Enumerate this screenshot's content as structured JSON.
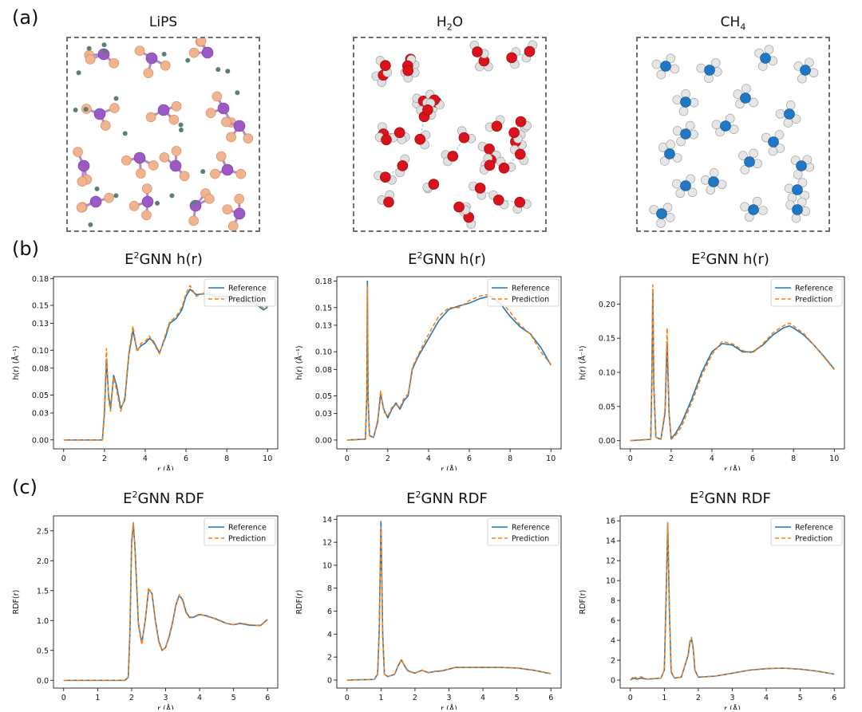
{
  "panel_letters": [
    "(a)",
    "(b)",
    "(c)"
  ],
  "molecules": [
    {
      "title": "LiPS",
      "atom_colors": {
        "main": "#9b59c6",
        "side": "#f2b48e",
        "small": "#5f7d78"
      }
    },
    {
      "title_main": "H",
      "title_sub": "2",
      "title_end": "O",
      "atom_colors": {
        "main": "#d9121b",
        "side": "#e0e0e0",
        "bond": "#7fd0ef"
      }
    },
    {
      "title_main": "CH",
      "title_sub": "4",
      "title_end": "",
      "atom_colors": {
        "main": "#1f78c4",
        "side": "#e6e6e6"
      }
    }
  ],
  "colors": {
    "reference": "#1f77b4",
    "prediction": "#ff7f0e",
    "axis": "#000000"
  },
  "chart_data": [
    {
      "type": "line",
      "panel": "b",
      "title_prefix": "E",
      "title_sup": "2",
      "title_rest": "GNN h(r)",
      "xlabel": "r (Å)",
      "ylabel": "h(r) (Å⁻¹)",
      "xlim": [
        -0.5,
        10.5
      ],
      "ylim": [
        -0.01,
        0.182
      ],
      "xticks": [
        0,
        2,
        4,
        6,
        8,
        10
      ],
      "yticks": [
        0.0,
        0.03,
        0.05,
        0.08,
        0.1,
        0.13,
        0.15,
        0.18
      ],
      "ytick_labels": [
        "0.00",
        "0.03",
        "0.05",
        "0.08",
        "0.10",
        "0.13",
        "0.15",
        "0.18"
      ],
      "legend": "top-right",
      "series": [
        {
          "name": "Reference",
          "x": [
            0,
            1.9,
            2.0,
            2.1,
            2.2,
            2.3,
            2.45,
            2.6,
            2.8,
            3.0,
            3.2,
            3.4,
            3.6,
            3.8,
            4.0,
            4.2,
            4.4,
            4.7,
            5.0,
            5.2,
            5.5,
            5.8,
            6.0,
            6.2,
            6.5,
            7.0,
            7.5,
            8.0,
            8.5,
            9.0,
            9.5,
            9.8,
            10.0
          ],
          "y": [
            0,
            0,
            0.03,
            0.09,
            0.05,
            0.035,
            0.072,
            0.06,
            0.035,
            0.045,
            0.095,
            0.122,
            0.1,
            0.105,
            0.108,
            0.113,
            0.11,
            0.097,
            0.115,
            0.13,
            0.135,
            0.145,
            0.16,
            0.168,
            0.162,
            0.163,
            0.16,
            0.16,
            0.155,
            0.155,
            0.15,
            0.145,
            0.148
          ]
        },
        {
          "name": "Prediction",
          "x": [
            0,
            1.9,
            2.0,
            2.1,
            2.2,
            2.3,
            2.45,
            2.6,
            2.8,
            3.0,
            3.2,
            3.4,
            3.6,
            3.8,
            4.0,
            4.2,
            4.4,
            4.7,
            5.0,
            5.2,
            5.5,
            5.8,
            6.0,
            6.2,
            6.5,
            7.0,
            7.5,
            8.0,
            8.5,
            9.0,
            9.5,
            9.8,
            10.0
          ],
          "y": [
            0,
            0,
            0.035,
            0.102,
            0.045,
            0.032,
            0.07,
            0.055,
            0.032,
            0.048,
            0.098,
            0.127,
            0.098,
            0.108,
            0.11,
            0.116,
            0.108,
            0.096,
            0.118,
            0.132,
            0.137,
            0.148,
            0.163,
            0.172,
            0.16,
            0.165,
            0.158,
            0.158,
            0.152,
            0.153,
            0.152,
            0.147,
            0.149
          ]
        }
      ]
    },
    {
      "type": "line",
      "panel": "b",
      "title_prefix": "E",
      "title_sup": "2",
      "title_rest": "GNN h(r)",
      "xlabel": "r (Å)",
      "ylabel": "h(r) (Å⁻¹)",
      "xlim": [
        -0.5,
        10.5
      ],
      "ylim": [
        -0.01,
        0.185
      ],
      "xticks": [
        0,
        2,
        4,
        6,
        8,
        10
      ],
      "yticks": [
        0.0,
        0.03,
        0.05,
        0.08,
        0.1,
        0.13,
        0.15,
        0.18
      ],
      "ytick_labels": [
        "0.00",
        "0.03",
        "0.05",
        "0.08",
        "0.10",
        "0.13",
        "0.15",
        "0.18"
      ],
      "legend": "top-right",
      "series": [
        {
          "name": "Reference",
          "x": [
            0,
            0.9,
            0.97,
            1.0,
            1.03,
            1.1,
            1.3,
            1.5,
            1.65,
            1.8,
            2.0,
            2.2,
            2.4,
            2.6,
            2.8,
            3.0,
            3.2,
            3.5,
            4.0,
            4.5,
            5.0,
            5.5,
            6.0,
            6.5,
            7.0,
            7.5,
            8.0,
            8.5,
            9.0,
            9.5,
            10.0
          ],
          "y": [
            0,
            0.001,
            0.05,
            0.18,
            0.05,
            0.005,
            0.003,
            0.02,
            0.052,
            0.035,
            0.025,
            0.035,
            0.042,
            0.035,
            0.045,
            0.05,
            0.08,
            0.095,
            0.115,
            0.135,
            0.148,
            0.152,
            0.155,
            0.16,
            0.163,
            0.155,
            0.14,
            0.128,
            0.12,
            0.105,
            0.085
          ]
        },
        {
          "name": "Prediction",
          "x": [
            0,
            0.9,
            0.97,
            1.0,
            1.03,
            1.1,
            1.3,
            1.5,
            1.65,
            1.8,
            2.0,
            2.2,
            2.4,
            2.6,
            2.8,
            3.0,
            3.2,
            3.5,
            4.0,
            4.5,
            5.0,
            5.5,
            6.0,
            6.5,
            7.0,
            7.5,
            8.0,
            8.5,
            9.0,
            9.5,
            10.0
          ],
          "y": [
            0,
            0.001,
            0.05,
            0.175,
            0.05,
            0.005,
            0.003,
            0.022,
            0.056,
            0.032,
            0.027,
            0.037,
            0.04,
            0.037,
            0.048,
            0.052,
            0.082,
            0.097,
            0.12,
            0.14,
            0.15,
            0.15,
            0.158,
            0.163,
            0.165,
            0.158,
            0.145,
            0.13,
            0.12,
            0.1,
            0.086
          ]
        }
      ]
    },
    {
      "type": "line",
      "panel": "b",
      "title_prefix": "E",
      "title_sup": "2",
      "title_rest": "GNN h(r)",
      "xlabel": "r (Å)",
      "ylabel": "h(r) (Å⁻¹)",
      "xlim": [
        -0.5,
        10.5
      ],
      "ylim": [
        -0.012,
        0.24
      ],
      "xticks": [
        0,
        2,
        4,
        6,
        8,
        10
      ],
      "yticks": [
        0.0,
        0.05,
        0.1,
        0.15,
        0.2
      ],
      "ytick_labels": [
        "0.00",
        "0.05",
        "0.10",
        "0.15",
        "0.20"
      ],
      "legend": "top-right",
      "series": [
        {
          "name": "Reference",
          "x": [
            0,
            1.0,
            1.05,
            1.1,
            1.15,
            1.25,
            1.5,
            1.7,
            1.8,
            1.9,
            2.0,
            2.2,
            2.5,
            3.0,
            3.5,
            4.0,
            4.5,
            5.0,
            5.5,
            6.0,
            6.5,
            7.0,
            7.5,
            7.8,
            8.0,
            8.5,
            9.0,
            9.5,
            10.0
          ],
          "y": [
            0,
            0.002,
            0.08,
            0.22,
            0.08,
            0.005,
            0.002,
            0.04,
            0.145,
            0.04,
            0.003,
            0.01,
            0.025,
            0.06,
            0.1,
            0.13,
            0.142,
            0.14,
            0.13,
            0.13,
            0.14,
            0.155,
            0.165,
            0.168,
            0.165,
            0.155,
            0.14,
            0.123,
            0.105
          ]
        },
        {
          "name": "Prediction",
          "x": [
            0,
            1.0,
            1.05,
            1.1,
            1.15,
            1.25,
            1.5,
            1.7,
            1.8,
            1.9,
            2.0,
            2.2,
            2.5,
            3.0,
            3.5,
            4.0,
            4.5,
            5.0,
            5.5,
            6.0,
            6.5,
            7.0,
            7.5,
            7.8,
            8.0,
            8.5,
            9.0,
            9.5,
            10.0
          ],
          "y": [
            0,
            0.002,
            0.085,
            0.228,
            0.085,
            0.005,
            0.002,
            0.045,
            0.165,
            0.04,
            0.002,
            0.007,
            0.02,
            0.055,
            0.095,
            0.126,
            0.145,
            0.142,
            0.132,
            0.128,
            0.142,
            0.158,
            0.168,
            0.172,
            0.168,
            0.157,
            0.14,
            0.122,
            0.104
          ]
        }
      ]
    },
    {
      "type": "line",
      "panel": "c",
      "title_prefix": "E",
      "title_sup": "2",
      "title_rest": "GNN RDF",
      "xlabel": "r (Å)",
      "ylabel": "RDF(r)",
      "xlim": [
        -0.3,
        6.3
      ],
      "ylim": [
        -0.13,
        2.75
      ],
      "xticks": [
        0,
        1,
        2,
        3,
        4,
        5,
        6
      ],
      "yticks": [
        0.0,
        0.5,
        1.0,
        1.5,
        2.0,
        2.5
      ],
      "ytick_labels": [
        "0.0",
        "0.5",
        "1.0",
        "1.5",
        "2.0",
        "2.5"
      ],
      "legend": "top-right",
      "series": [
        {
          "name": "Reference",
          "x": [
            0,
            1.8,
            1.9,
            1.95,
            2.0,
            2.05,
            2.1,
            2.2,
            2.3,
            2.4,
            2.5,
            2.6,
            2.7,
            2.8,
            2.9,
            3.0,
            3.1,
            3.2,
            3.3,
            3.4,
            3.5,
            3.6,
            3.7,
            3.8,
            4.0,
            4.2,
            4.5,
            4.8,
            5.0,
            5.2,
            5.5,
            5.8,
            6.0
          ],
          "y": [
            0,
            0,
            0.05,
            0.8,
            2.3,
            2.62,
            2.2,
            0.95,
            0.62,
            1.0,
            1.52,
            1.45,
            1.0,
            0.65,
            0.5,
            0.55,
            0.72,
            0.95,
            1.25,
            1.42,
            1.35,
            1.15,
            1.05,
            1.05,
            1.1,
            1.08,
            1.02,
            0.95,
            0.93,
            0.95,
            0.92,
            0.92,
            1.02
          ]
        },
        {
          "name": "Prediction",
          "x": [
            0,
            1.8,
            1.9,
            1.95,
            2.0,
            2.05,
            2.1,
            2.2,
            2.3,
            2.4,
            2.5,
            2.6,
            2.7,
            2.8,
            2.9,
            3.0,
            3.1,
            3.2,
            3.3,
            3.4,
            3.5,
            3.6,
            3.7,
            3.8,
            4.0,
            4.2,
            4.5,
            4.8,
            5.0,
            5.2,
            5.5,
            5.8,
            6.0
          ],
          "y": [
            0,
            0,
            0.06,
            0.85,
            2.35,
            2.64,
            2.15,
            0.92,
            0.6,
            1.02,
            1.55,
            1.43,
            0.98,
            0.63,
            0.49,
            0.56,
            0.74,
            0.97,
            1.27,
            1.43,
            1.33,
            1.13,
            1.06,
            1.06,
            1.11,
            1.07,
            1.03,
            0.95,
            0.93,
            0.96,
            0.93,
            0.91,
            1.02
          ]
        }
      ]
    },
    {
      "type": "line",
      "panel": "c",
      "title_prefix": "E",
      "title_sup": "2",
      "title_rest": "GNN RDF",
      "xlabel": "r (Å)",
      "ylabel": "RDF(r)",
      "xlim": [
        -0.3,
        6.3
      ],
      "ylim": [
        -0.7,
        14.3
      ],
      "xticks": [
        0,
        1,
        2,
        3,
        4,
        5,
        6
      ],
      "yticks": [
        0,
        2,
        4,
        6,
        8,
        10,
        12,
        14
      ],
      "ytick_labels": [
        "0",
        "2",
        "4",
        "6",
        "8",
        "10",
        "12",
        "14"
      ],
      "legend": "top-right",
      "series": [
        {
          "name": "Reference",
          "x": [
            0,
            0.8,
            0.9,
            0.95,
            1.0,
            1.05,
            1.1,
            1.2,
            1.4,
            1.5,
            1.6,
            1.7,
            1.8,
            2.0,
            2.2,
            2.4,
            2.6,
            2.8,
            3.0,
            3.2,
            3.5,
            4.0,
            4.5,
            5.0,
            5.5,
            6.0
          ],
          "y": [
            0,
            0.05,
            0.5,
            4.5,
            13.8,
            4.0,
            0.5,
            0.3,
            0.5,
            1.2,
            1.75,
            1.2,
            0.8,
            0.6,
            0.85,
            0.65,
            0.75,
            0.8,
            0.95,
            1.1,
            1.1,
            1.1,
            1.1,
            1.05,
            0.85,
            0.55
          ]
        },
        {
          "name": "Prediction",
          "x": [
            0,
            0.8,
            0.9,
            0.95,
            1.0,
            1.05,
            1.1,
            1.2,
            1.4,
            1.5,
            1.6,
            1.7,
            1.8,
            2.0,
            2.2,
            2.4,
            2.6,
            2.8,
            3.0,
            3.2,
            3.5,
            4.0,
            4.5,
            5.0,
            5.5,
            6.0
          ],
          "y": [
            0,
            0.05,
            0.5,
            4.3,
            13.3,
            3.8,
            0.5,
            0.3,
            0.5,
            1.25,
            1.8,
            1.15,
            0.75,
            0.62,
            0.87,
            0.62,
            0.77,
            0.82,
            0.97,
            1.12,
            1.1,
            1.12,
            1.1,
            1.06,
            0.86,
            0.56
          ]
        }
      ]
    },
    {
      "type": "line",
      "panel": "c",
      "title_prefix": "E",
      "title_sup": "2",
      "title_rest": "GNN RDF",
      "xlabel": "r (Å)",
      "ylabel": "RDF(r)",
      "xlim": [
        -0.3,
        6.3
      ],
      "ylim": [
        -0.8,
        16.5
      ],
      "xticks": [
        0,
        1,
        2,
        3,
        4,
        5,
        6
      ],
      "yticks": [
        0,
        2,
        4,
        6,
        8,
        10,
        12,
        14,
        16
      ],
      "ytick_labels": [
        "0",
        "2",
        "4",
        "6",
        "8",
        "10",
        "12",
        "14",
        "16"
      ],
      "legend": "top-right",
      "series": [
        {
          "name": "Reference",
          "x": [
            0,
            0.1,
            0.2,
            0.3,
            0.5,
            0.9,
            1.0,
            1.05,
            1.1,
            1.15,
            1.2,
            1.3,
            1.5,
            1.7,
            1.75,
            1.8,
            1.85,
            1.9,
            2.0,
            2.5,
            3.0,
            3.5,
            4.0,
            4.5,
            5.0,
            5.5,
            6.0
          ],
          "y": [
            0,
            0.2,
            0.1,
            0.2,
            0.1,
            0.2,
            1.0,
            8.0,
            15.7,
            7.0,
            0.8,
            0.2,
            0.3,
            2.5,
            3.8,
            4.1,
            3.2,
            1.0,
            0.3,
            0.4,
            0.7,
            1.0,
            1.15,
            1.2,
            1.1,
            0.9,
            0.6
          ]
        },
        {
          "name": "Prediction",
          "x": [
            0,
            0.1,
            0.2,
            0.3,
            0.5,
            0.9,
            1.0,
            1.05,
            1.1,
            1.15,
            1.2,
            1.3,
            1.5,
            1.7,
            1.75,
            1.8,
            1.85,
            1.9,
            2.0,
            2.5,
            3.0,
            3.5,
            4.0,
            4.5,
            5.0,
            5.5,
            6.0
          ],
          "y": [
            0,
            0.4,
            0.15,
            0.35,
            0.1,
            0.2,
            1.0,
            8.3,
            15.9,
            7.2,
            0.8,
            0.2,
            0.3,
            2.6,
            3.9,
            4.3,
            3.3,
            1.0,
            0.3,
            0.4,
            0.7,
            1.0,
            1.17,
            1.2,
            1.1,
            0.9,
            0.6
          ]
        }
      ]
    }
  ]
}
